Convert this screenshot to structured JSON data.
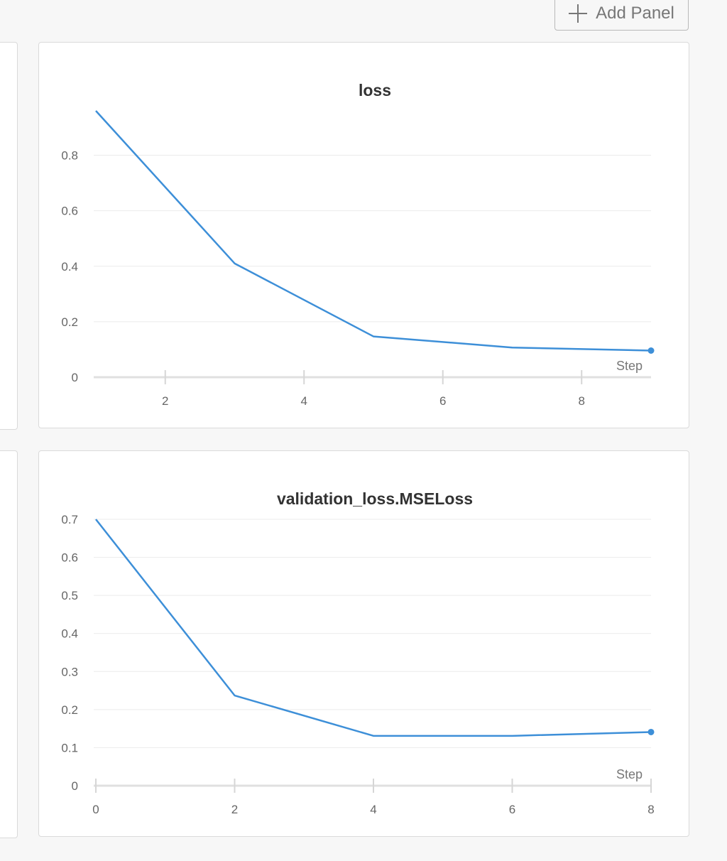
{
  "toolbar": {
    "add_panel_label": "Add Panel"
  },
  "chart_data": [
    {
      "type": "line",
      "title": "loss",
      "xlabel": "Step",
      "ylabel": "",
      "xlim": [
        1,
        9
      ],
      "ylim": [
        0,
        0.96
      ],
      "x_ticks": [
        2,
        4,
        6,
        8
      ],
      "y_ticks": [
        0,
        0.2,
        0.4,
        0.6,
        0.8
      ],
      "y_tick_labels": [
        "0",
        "0.2",
        "0.4",
        "0.6",
        "0.8"
      ],
      "grid": true,
      "series": [
        {
          "color": "#3d8fd8",
          "x": [
            1,
            3,
            5,
            7,
            9
          ],
          "y": [
            0.96,
            0.41,
            0.147,
            0.107,
            0.096
          ]
        }
      ]
    },
    {
      "type": "line",
      "title": "validation_loss.MSELoss",
      "xlabel": "Step",
      "ylabel": "",
      "xlim": [
        0,
        8
      ],
      "ylim": [
        0,
        0.7
      ],
      "x_ticks": [
        0,
        2,
        4,
        6,
        8
      ],
      "y_ticks": [
        0,
        0.1,
        0.2,
        0.3,
        0.4,
        0.5,
        0.6,
        0.7
      ],
      "y_tick_labels": [
        "0",
        "0.1",
        "0.2",
        "0.3",
        "0.4",
        "0.5",
        "0.6",
        "0.7"
      ],
      "grid": true,
      "series": [
        {
          "color": "#3d8fd8",
          "x": [
            0,
            2,
            4,
            6,
            8
          ],
          "y": [
            0.7,
            0.237,
            0.131,
            0.131,
            0.141
          ]
        }
      ]
    }
  ]
}
